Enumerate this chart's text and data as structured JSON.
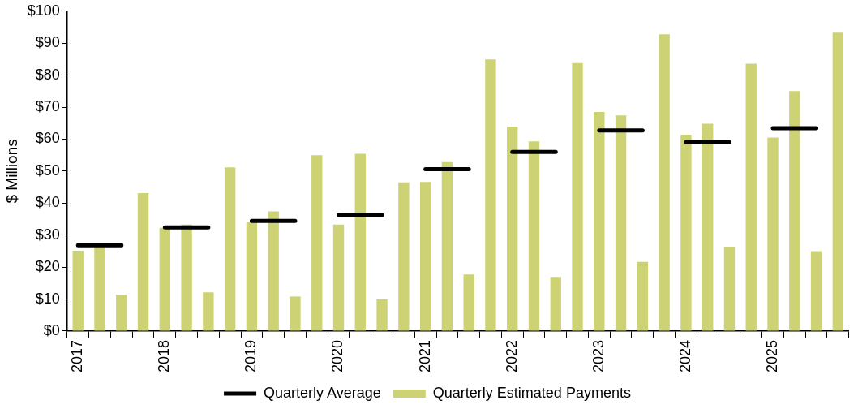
{
  "chart_data": {
    "type": "bar",
    "ylabel": "$ Millions",
    "categories": [
      "2017",
      null,
      null,
      null,
      "2018",
      null,
      null,
      null,
      "2019",
      null,
      null,
      null,
      "2020",
      null,
      null,
      null,
      "2021",
      null,
      null,
      null,
      "2022",
      null,
      null,
      null,
      "2023",
      null,
      null,
      null,
      "2024",
      null,
      null,
      null,
      "2025",
      null,
      null,
      null
    ],
    "series": [
      {
        "name": "Quarterly Estimated Payments",
        "color": "#cdd375",
        "values": [
          25.1,
          26.6,
          11.4,
          43.1,
          32.3,
          33.3,
          12.1,
          51.2,
          34.0,
          37.4,
          10.8,
          55.0,
          33.3,
          55.4,
          9.9,
          46.5,
          46.6,
          52.8,
          17.7,
          84.9,
          63.9,
          59.3,
          16.9,
          83.8,
          68.5,
          67.4,
          21.6,
          92.8,
          61.4,
          64.8,
          26.4,
          83.6,
          60.5,
          75.0,
          25.0,
          93.3
        ]
      },
      {
        "name": "Quarterly Average",
        "type": "line",
        "color": "#000000",
        "values": [
          26.8,
          26.8,
          26.8,
          null,
          32.4,
          32.4,
          32.4,
          null,
          34.4,
          34.4,
          34.4,
          null,
          36.3,
          36.3,
          36.3,
          null,
          50.6,
          50.6,
          50.6,
          null,
          56.0,
          56.0,
          56.0,
          null,
          62.7,
          62.7,
          62.7,
          null,
          59.1,
          59.1,
          59.1,
          null,
          63.4,
          63.4,
          63.4,
          null
        ]
      }
    ],
    "ylim": [
      0,
      100
    ],
    "yticks": [
      {
        "value": 0,
        "label": "$0"
      },
      {
        "value": 10,
        "label": "$10"
      },
      {
        "value": 20,
        "label": "$20"
      },
      {
        "value": 30,
        "label": "$30"
      },
      {
        "value": 40,
        "label": "$40"
      },
      {
        "value": 50,
        "label": "$50"
      },
      {
        "value": 60,
        "label": "$60"
      },
      {
        "value": 70,
        "label": "$70"
      },
      {
        "value": 80,
        "label": "$80"
      },
      {
        "value": 90,
        "label": "$90"
      },
      {
        "value": 100,
        "label": "$100"
      }
    ],
    "grid": false,
    "legend": "bottom",
    "marker": "none"
  }
}
